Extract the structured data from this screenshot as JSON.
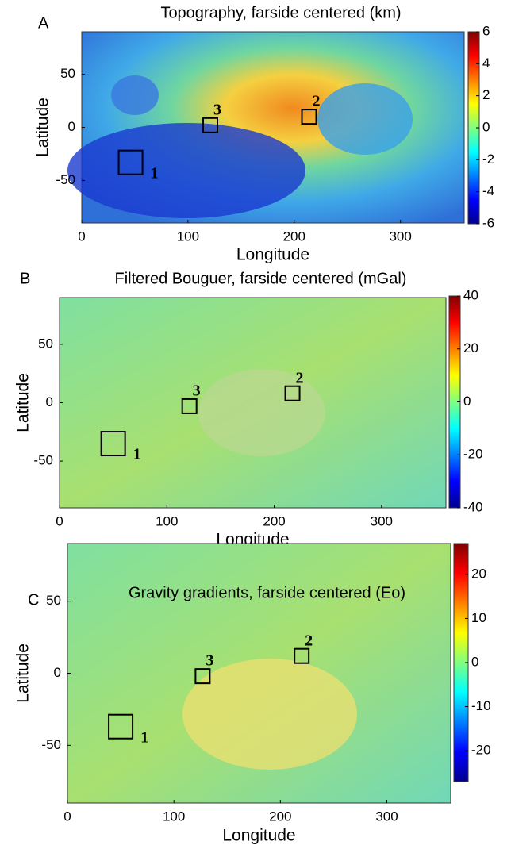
{
  "chart_data": [
    {
      "type": "heatmap",
      "panel": "A",
      "title": "Topography, farside centered (km)",
      "xlabel": "Longitude",
      "ylabel": "Latitude",
      "xlim": [
        0,
        360
      ],
      "ylim": [
        -90,
        90
      ],
      "xticks": [
        0,
        100,
        200,
        300
      ],
      "yticks": [
        -50,
        0,
        50
      ],
      "clim": [
        -6,
        6
      ],
      "cticks": [
        -6,
        -4,
        -2,
        0,
        2,
        4,
        6
      ],
      "colormap": "jet",
      "boxes": [
        {
          "label": "1",
          "x": 46,
          "y": -33
        },
        {
          "label": "2",
          "x": 214,
          "y": 10
        },
        {
          "label": "3",
          "x": 121,
          "y": 2
        }
      ]
    },
    {
      "type": "heatmap",
      "panel": "B",
      "title": "Filtered Bouguer, farside centered (mGal)",
      "xlabel": "Longitude",
      "ylabel": "Latitude",
      "xlim": [
        0,
        360
      ],
      "ylim": [
        -90,
        90
      ],
      "xticks": [
        0,
        100,
        200,
        300
      ],
      "yticks": [
        -50,
        0,
        50
      ],
      "clim": [
        -40,
        40
      ],
      "cticks": [
        -40,
        -20,
        0,
        20,
        40
      ],
      "colormap": "jet",
      "boxes": [
        {
          "label": "1",
          "x": 50,
          "y": -35
        },
        {
          "label": "2",
          "x": 217,
          "y": 8
        },
        {
          "label": "3",
          "x": 121,
          "y": -3
        }
      ]
    },
    {
      "type": "heatmap",
      "panel": "C",
      "title": "Gravity gradients, farside centered (Eo)",
      "xlabel": "Longitude",
      "ylabel": "Latitude",
      "xlim": [
        0,
        360
      ],
      "ylim": [
        -90,
        90
      ],
      "xticks": [
        0,
        100,
        200,
        300
      ],
      "yticks": [
        -50,
        0,
        50
      ],
      "clim": [
        -27,
        27
      ],
      "cticks": [
        -20,
        -10,
        0,
        10,
        20
      ],
      "colormap": "jet",
      "boxes": [
        {
          "label": "1",
          "x": 50,
          "y": -37
        },
        {
          "label": "2",
          "x": 220,
          "y": 12
        },
        {
          "label": "3",
          "x": 127,
          "y": -2
        }
      ]
    }
  ]
}
